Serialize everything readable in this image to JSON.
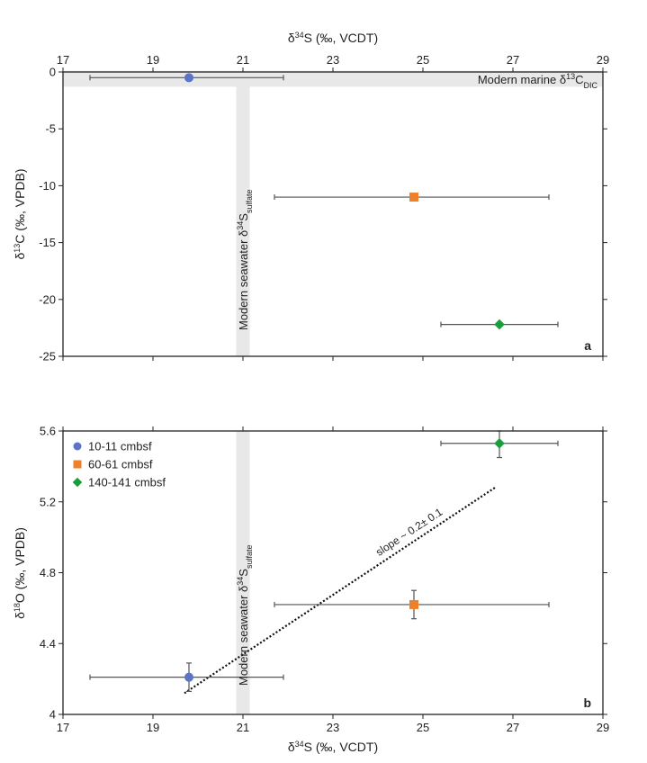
{
  "chart_data": [
    {
      "panel": "a",
      "type": "scatter",
      "xlabel": "δ34S (‰, VCDT)",
      "ylabel": "δ13C (‰, VPDB)",
      "xlim": [
        17,
        29
      ],
      "ylim": [
        -25,
        0
      ],
      "x_ticks": [
        "17",
        "19",
        "21",
        "23",
        "25",
        "27",
        "29"
      ],
      "y_ticks": [
        "0",
        "-5",
        "-10",
        "-15",
        "-20",
        "-25"
      ],
      "x_axis_position": "top",
      "grid": false,
      "series": [
        {
          "name": "10-11 cmbsf",
          "color": "#5b74c6",
          "marker": "circle",
          "x": 19.8,
          "y": -0.5,
          "x_err": [
            17.6,
            21.9
          ]
        },
        {
          "name": "60-61 cmbsf",
          "color": "#f07f2c",
          "marker": "square",
          "x": 24.8,
          "y": -11.0,
          "x_err": [
            21.7,
            27.8
          ]
        },
        {
          "name": "140-141 cmbsf",
          "color": "#1a9e3a",
          "marker": "diamond",
          "x": 26.7,
          "y": -22.2,
          "x_err": [
            25.4,
            28.0
          ]
        }
      ],
      "bands": [
        {
          "orientation": "horizontal",
          "range": [
            -1.3,
            0.1
          ],
          "label": "Modern marine δ13CDIC"
        },
        {
          "orientation": "vertical",
          "range": [
            20.85,
            21.15
          ],
          "label": "Modern seawater δ34Ssulfate"
        }
      ]
    },
    {
      "panel": "b",
      "type": "scatter",
      "xlabel": "δ34S (‰, VCDT)",
      "ylabel": "δ18O (‰, VPDB)",
      "xlim": [
        17,
        29
      ],
      "ylim": [
        4.0,
        5.6
      ],
      "x_ticks": [
        "17",
        "19",
        "21",
        "23",
        "25",
        "27",
        "29"
      ],
      "y_ticks": [
        "4",
        "4.4",
        "4.8",
        "5.2",
        "5.6"
      ],
      "x_axis_position": "bottom",
      "grid": false,
      "legend_position": "top-left",
      "series": [
        {
          "name": "10-11 cmbsf",
          "color": "#5b74c6",
          "marker": "circle",
          "x": 19.8,
          "y": 4.21,
          "x_err": [
            17.6,
            21.9
          ],
          "y_err": [
            4.13,
            4.29
          ]
        },
        {
          "name": "60-61 cmbsf",
          "color": "#f07f2c",
          "marker": "square",
          "x": 24.8,
          "y": 4.62,
          "x_err": [
            21.7,
            27.8
          ],
          "y_err": [
            4.54,
            4.7
          ]
        },
        {
          "name": "140-141 cmbsf",
          "color": "#1a9e3a",
          "marker": "diamond",
          "x": 26.7,
          "y": 5.53,
          "x_err": [
            25.4,
            28.0
          ],
          "y_err": [
            5.45,
            5.6
          ]
        }
      ],
      "bands": [
        {
          "orientation": "vertical",
          "range": [
            20.85,
            21.15
          ],
          "label": "Modern seawater δ34Ssulfate"
        }
      ],
      "regression": {
        "x": [
          19.7,
          26.6
        ],
        "y": [
          4.12,
          5.28
        ],
        "label": "slope ~ 0.2± 0.1"
      }
    }
  ],
  "colors": {
    "band": "#e8e8e8",
    "error_bar": "#555555",
    "axis": "#222222",
    "regression": "#111111"
  }
}
